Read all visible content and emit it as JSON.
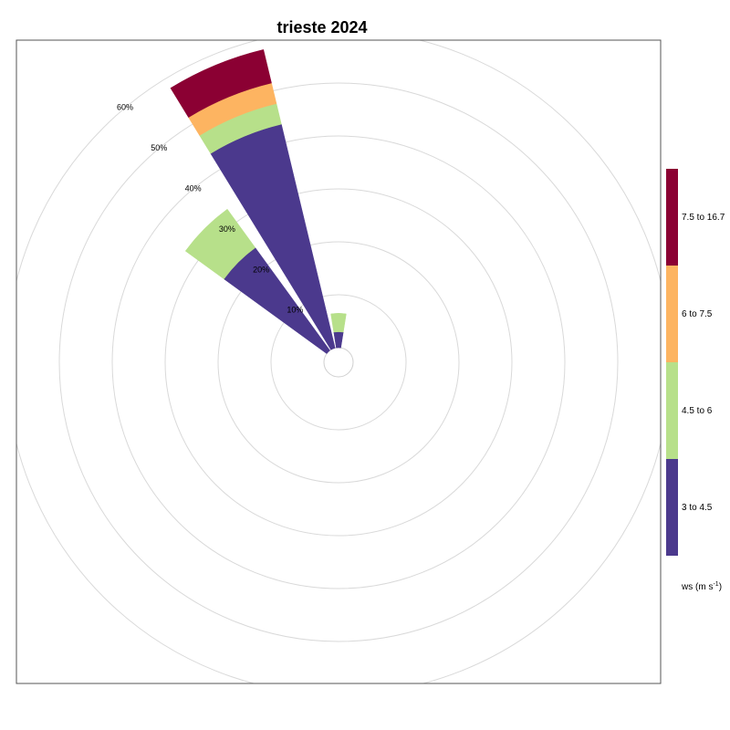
{
  "chart_data": {
    "type": "polar-bar",
    "subtype": "wind rose (stacked)",
    "title": "trieste 2024",
    "radial_axis": {
      "unit": "%",
      "ticks": [
        10,
        20,
        30,
        40,
        50,
        60
      ],
      "tick_labels": [
        "10%",
        "20%",
        "30%",
        "40%",
        "50%",
        "60%"
      ],
      "max": 70
    },
    "grid": true,
    "legend": {
      "title": "ws (m s",
      "title_exponent": "-1",
      "title_close": ")",
      "placement": "right"
    },
    "categories": [
      "N",
      "NNW",
      "NW"
    ],
    "direction_degrees": [
      0,
      337.5,
      315
    ],
    "series": [
      {
        "name": "3 to 4.5",
        "color": "#4B398D",
        "values": [
          3.0,
          43.5,
          24.0
        ]
      },
      {
        "name": "4.5 to 6",
        "color": "#B7E08A",
        "values": [
          3.5,
          4.0,
          9.0
        ]
      },
      {
        "name": "6 to 7.5",
        "color": "#FDB461",
        "values": [
          0,
          4.0,
          0
        ]
      },
      {
        "name": "7.5 to 16.7",
        "color": "#8B0033",
        "values": [
          0,
          6.5,
          0
        ]
      }
    ]
  }
}
